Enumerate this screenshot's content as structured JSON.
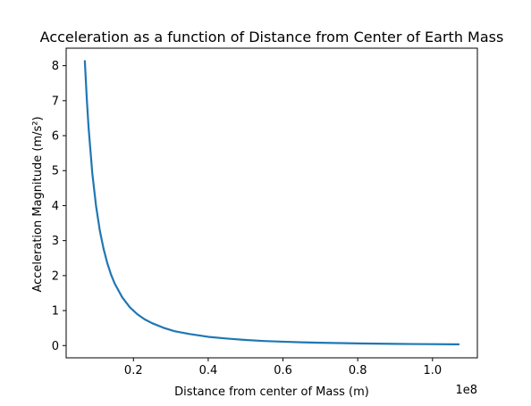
{
  "chart_data": {
    "type": "line",
    "title": "Acceleration as a function of Distance from Center of Earth Mass",
    "xlabel": "Distance from center of Mass (m)",
    "ylabel": "Acceleration Magnitude (m/s²)",
    "x_offset_label": "1e8",
    "xlim": [
      2000000,
      112000000
    ],
    "ylim": [
      -0.35,
      8.5
    ],
    "x_ticks": [
      {
        "value": 20000000,
        "label": "0.2"
      },
      {
        "value": 40000000,
        "label": "0.4"
      },
      {
        "value": 60000000,
        "label": "0.6"
      },
      {
        "value": 80000000,
        "label": "0.8"
      },
      {
        "value": 100000000,
        "label": "1.0"
      }
    ],
    "y_ticks": [
      {
        "value": 0,
        "label": "0"
      },
      {
        "value": 1,
        "label": "1"
      },
      {
        "value": 2,
        "label": "2"
      },
      {
        "value": 3,
        "label": "3"
      },
      {
        "value": 4,
        "label": "4"
      },
      {
        "value": 5,
        "label": "5"
      },
      {
        "value": 6,
        "label": "6"
      },
      {
        "value": 7,
        "label": "7"
      },
      {
        "value": 8,
        "label": "8"
      }
    ],
    "grid": false,
    "series": [
      {
        "color": "#1f77b4",
        "x": [
          7000000,
          7500000,
          8000000,
          9000000,
          10000000,
          11000000,
          12000000,
          13000000,
          14000000,
          15000000,
          17000000,
          19000000,
          21000000,
          23000000,
          25000000,
          28000000,
          31000000,
          35000000,
          40000000,
          45000000,
          50000000,
          55000000,
          60000000,
          65000000,
          70000000,
          75000000,
          80000000,
          85000000,
          90000000,
          95000000,
          100000000,
          107000000
        ],
        "y": [
          8.13,
          7.09,
          6.23,
          4.92,
          3.99,
          3.29,
          2.77,
          2.36,
          2.03,
          1.77,
          1.38,
          1.1,
          0.9,
          0.75,
          0.64,
          0.51,
          0.41,
          0.33,
          0.25,
          0.2,
          0.16,
          0.13,
          0.11,
          0.094,
          0.081,
          0.071,
          0.062,
          0.055,
          0.049,
          0.044,
          0.04,
          0.035
        ]
      }
    ]
  }
}
